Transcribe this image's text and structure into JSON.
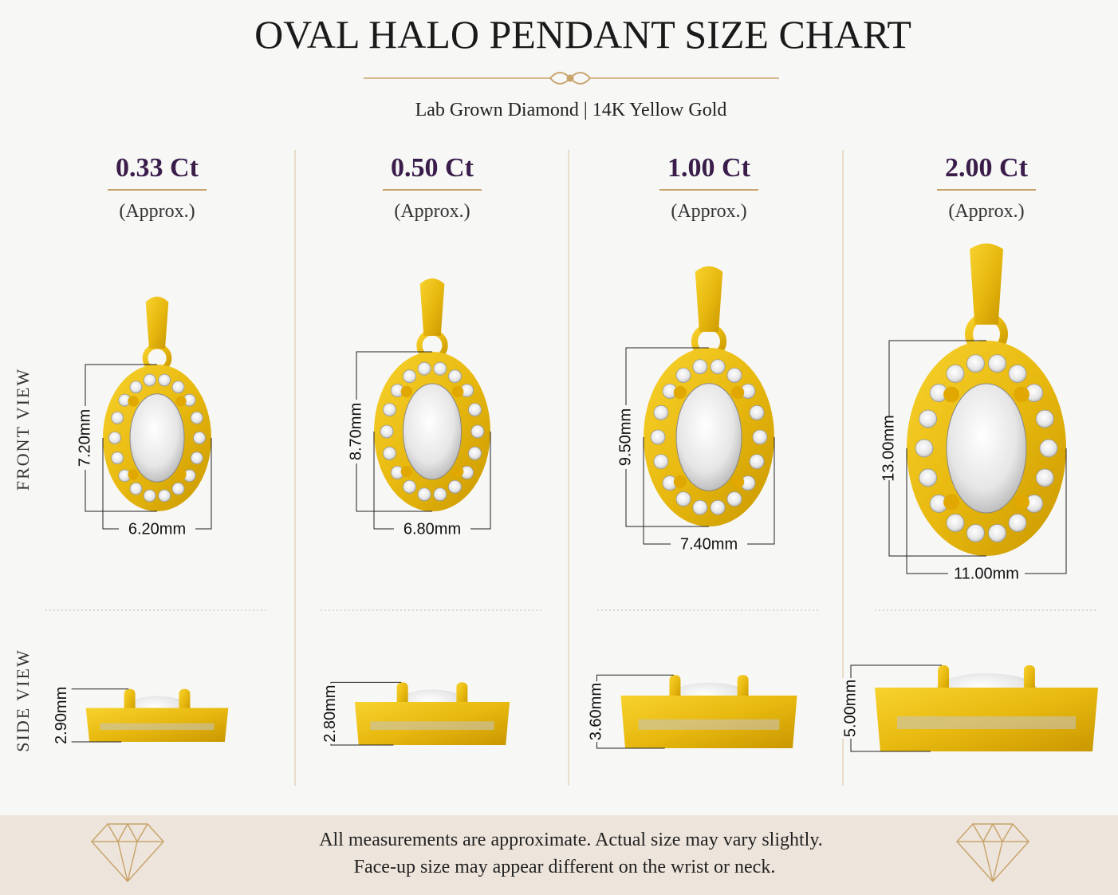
{
  "header": {
    "title": "OVAL HALO PENDANT SIZE CHART",
    "subtitle": "Lab Grown Diamond | 14K Yellow Gold"
  },
  "row_labels": [
    "FRONT VIEW",
    "SIDE VIEW"
  ],
  "columns": [
    {
      "carat": "0.33 Ct",
      "note": "(Approx.)",
      "height": "7.20mm",
      "width": "6.20mm",
      "depth": "2.90mm"
    },
    {
      "carat": "0.50 Ct",
      "note": "(Approx.)",
      "height": "8.70mm",
      "width": "6.80mm",
      "depth": "2.80mm"
    },
    {
      "carat": "1.00 Ct",
      "note": "(Approx.)",
      "height": "9.50mm",
      "width": "7.40mm",
      "depth": "3.60mm"
    },
    {
      "carat": "2.00 Ct",
      "note": "(Approx.)",
      "height": "13.00mm",
      "width": "11.00mm",
      "depth": "5.00mm"
    }
  ],
  "footer": {
    "lines": [
      "All measurements are approximate. Actual size may vary slightly.",
      "Face-up size may appear different on the wrist or neck."
    ]
  }
}
